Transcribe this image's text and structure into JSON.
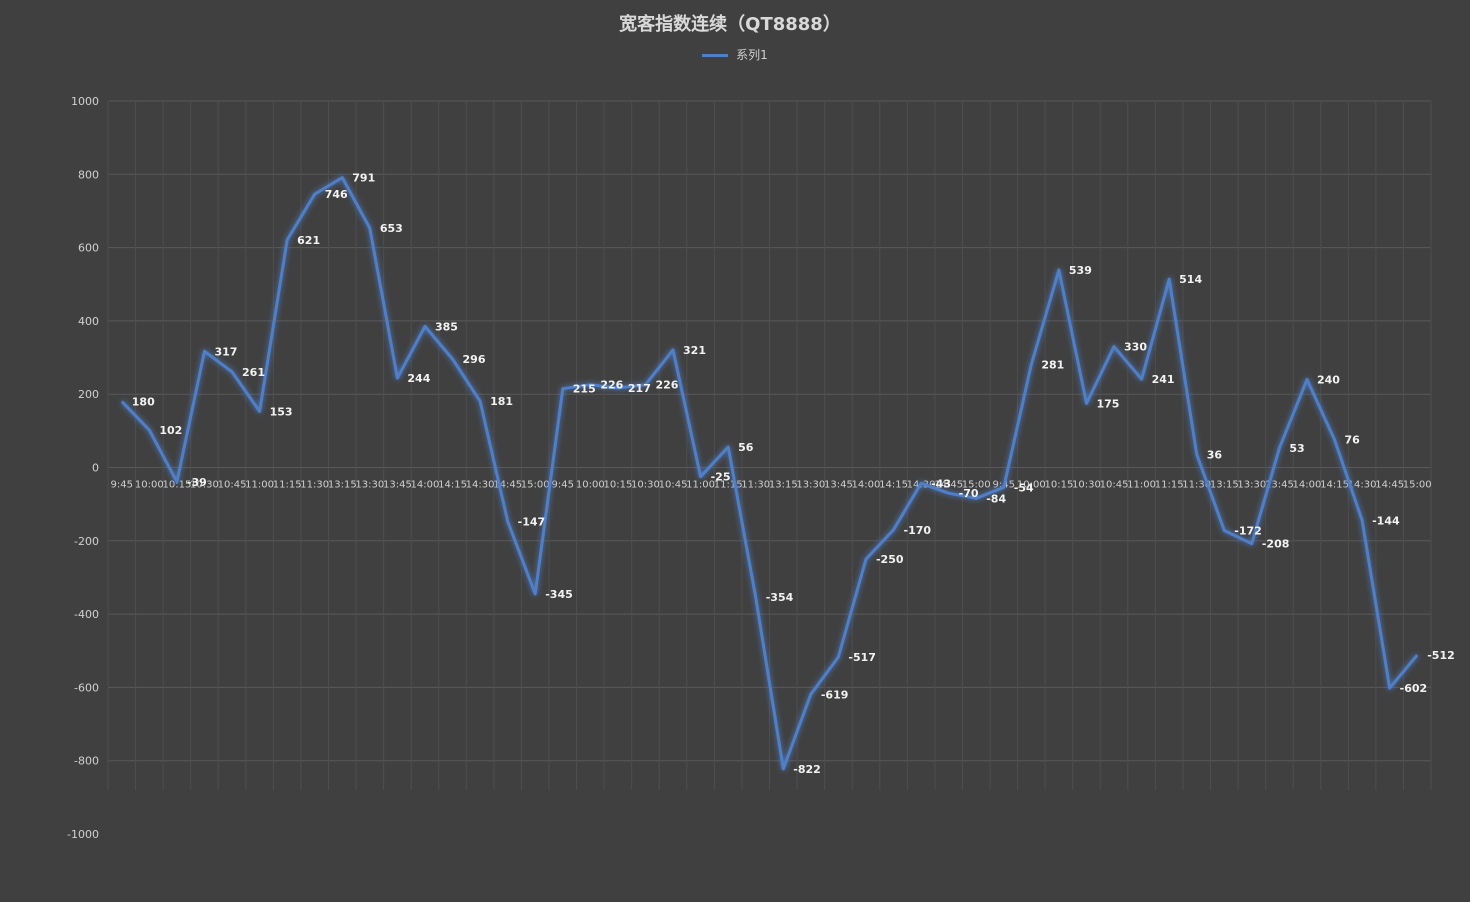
{
  "chart_data": {
    "type": "line",
    "title": "宽客指数连续（QT8888）",
    "xlabel": "",
    "ylabel": "",
    "ylim": [
      -1000,
      1000
    ],
    "yticks": [
      1000,
      800,
      600,
      400,
      200,
      0,
      -200,
      -400,
      -600,
      -800,
      -1000
    ],
    "grid": true,
    "legend_position": "top",
    "series_color": "#4f7fc8",
    "categories": [
      "9:45",
      "10:00",
      "10:15",
      "10:30",
      "10:45",
      "11:00",
      "11:15",
      "11:30",
      "13:15",
      "13:30",
      "13:45",
      "14:00",
      "14:15",
      "14:30",
      "14:45",
      "15:00",
      "9:45",
      "10:00",
      "10:15",
      "10:30",
      "10:45",
      "11:00",
      "11:15",
      "11:30",
      "13:15",
      "13:30",
      "13:45",
      "14:00",
      "14:15",
      "14:30",
      "14:45",
      "15:00",
      "9:45",
      "10:00",
      "10:15",
      "10:30",
      "10:45",
      "11:00",
      "11:15",
      "11:30",
      "13:15",
      "13:30",
      "13:45",
      "14:00",
      "14:15",
      "14:30",
      "14:45",
      "15:00"
    ],
    "series": [
      {
        "name": "系列1",
        "values": [
          180,
          102,
          -39,
          317,
          261,
          153,
          621,
          746,
          791,
          653,
          244,
          385,
          296,
          181,
          -147,
          -345,
          215,
          226,
          217,
          226,
          321,
          -25,
          56,
          -354,
          -822,
          -619,
          -517,
          -250,
          -170,
          -43,
          -70,
          -84,
          -54,
          281,
          539,
          175,
          330,
          241,
          514,
          36,
          -172,
          -208,
          53,
          240,
          76,
          -144,
          -602,
          -512
        ]
      }
    ]
  }
}
